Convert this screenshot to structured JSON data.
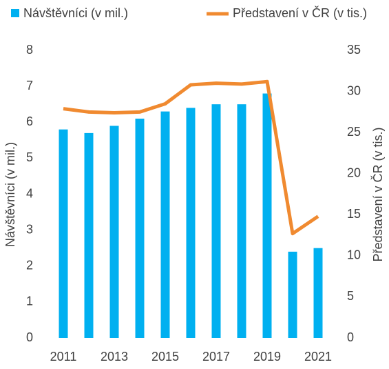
{
  "chart_data": {
    "type": "bar_line",
    "categories": [
      "2011",
      null,
      "2013",
      null,
      "2015",
      null,
      "2017",
      null,
      "2019",
      null,
      "2021"
    ],
    "series": [
      {
        "name": "Návštěvníci (v mil.)",
        "color": "#00b0f0",
        "type": "bar",
        "values": [
          5.8,
          5.7,
          5.9,
          6.1,
          6.3,
          6.4,
          6.5,
          6.5,
          6.8,
          2.4,
          2.5
        ]
      },
      {
        "name": "Představení v ČR (v tis.)",
        "color": "#f08a30",
        "type": "line",
        "axis": "y2",
        "values": [
          27.9,
          27.5,
          27.4,
          27.5,
          28.5,
          30.8,
          31.0,
          30.9,
          31.2,
          12.7,
          14.8
        ]
      }
    ],
    "ylabel": "Návštěvníci (v mil.)",
    "y2label": "Představení v ČR (v tis.)",
    "ylim": [
      0,
      8
    ],
    "yticks": [
      0,
      1,
      2,
      3,
      4,
      5,
      6,
      7,
      8
    ],
    "y2lim": [
      0,
      35
    ],
    "y2ticks": [
      0,
      5,
      10,
      15,
      20,
      25,
      30,
      35
    ],
    "legend": "top"
  }
}
